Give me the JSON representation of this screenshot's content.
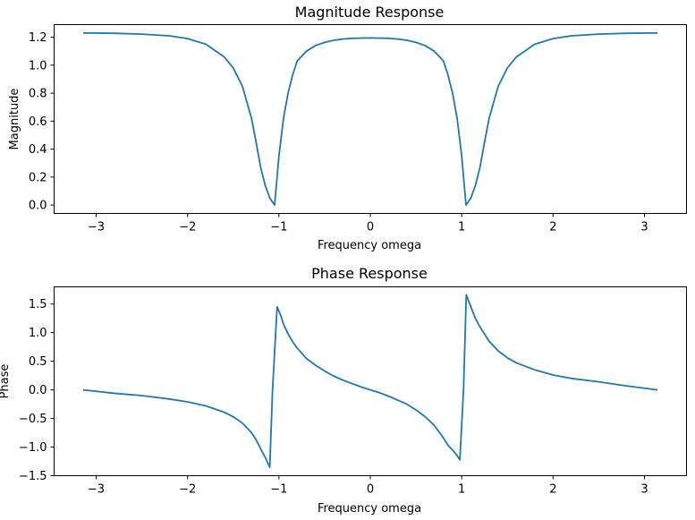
{
  "chart_data": [
    {
      "type": "line",
      "title": "Magnitude Response",
      "xlabel": "Frequency omega",
      "ylabel": "Magnitude",
      "xlim": [
        -3.46,
        3.46
      ],
      "ylim": [
        -0.06,
        1.29
      ],
      "xticks": [
        -3,
        -2,
        -1,
        0,
        1,
        2,
        3
      ],
      "yticks": [
        0.0,
        0.2,
        0.4,
        0.6,
        0.8,
        1.0,
        1.2
      ],
      "xtick_labels": [
        "−3",
        "−2",
        "−1",
        "0",
        "1",
        "2",
        "3"
      ],
      "ytick_labels": [
        "0.0",
        "0.2",
        "0.4",
        "0.6",
        "0.8",
        "1.0",
        "1.2"
      ],
      "grid": false,
      "color": "#1f77b4",
      "series": [
        {
          "x": [
            -3.1416,
            -2.8,
            -2.5,
            -2.2,
            -2.0,
            -1.8,
            -1.6,
            -1.5,
            -1.4,
            -1.3,
            -1.25,
            -1.2,
            -1.15,
            -1.1,
            -1.0472,
            -1.0,
            -0.95,
            -0.9,
            -0.85,
            -0.8,
            -0.7,
            -0.6,
            -0.5,
            -0.4,
            -0.3,
            -0.2,
            0.0,
            0.2,
            0.3,
            0.4,
            0.5,
            0.6,
            0.7,
            0.8,
            0.85,
            0.9,
            0.95,
            1.0,
            1.0472,
            1.1,
            1.15,
            1.2,
            1.25,
            1.3,
            1.4,
            1.5,
            1.6,
            1.8,
            2.0,
            2.2,
            2.5,
            2.8,
            3.1416
          ],
          "y": [
            1.23,
            1.228,
            1.222,
            1.21,
            1.19,
            1.15,
            1.06,
            0.98,
            0.85,
            0.62,
            0.45,
            0.27,
            0.14,
            0.05,
            0.0,
            0.35,
            0.62,
            0.8,
            0.93,
            1.03,
            1.1,
            1.14,
            1.163,
            1.178,
            1.187,
            1.192,
            1.195,
            1.192,
            1.187,
            1.178,
            1.163,
            1.14,
            1.1,
            1.03,
            0.93,
            0.8,
            0.62,
            0.35,
            0.0,
            0.05,
            0.14,
            0.27,
            0.45,
            0.62,
            0.85,
            0.98,
            1.06,
            1.15,
            1.19,
            1.21,
            1.222,
            1.228,
            1.23
          ]
        }
      ]
    },
    {
      "type": "line",
      "title": "Phase Response",
      "xlabel": "Frequency omega",
      "ylabel": "Phase",
      "xlim": [
        -3.46,
        3.46
      ],
      "ylim": [
        -1.5,
        1.8
      ],
      "xticks": [
        -3,
        -2,
        -1,
        0,
        1,
        2,
        3
      ],
      "yticks": [
        -1.5,
        -1.0,
        -0.5,
        0.0,
        0.5,
        1.0,
        1.5
      ],
      "xtick_labels": [
        "−3",
        "−2",
        "−1",
        "0",
        "1",
        "2",
        "3"
      ],
      "ytick_labels": [
        "−1.5",
        "−1.0",
        "−0.5",
        "0.0",
        "0.5",
        "1.0",
        "1.5"
      ],
      "grid": false,
      "color": "#1f77b4",
      "series": [
        {
          "x": [
            -3.1416,
            -2.8,
            -2.5,
            -2.2,
            -2.0,
            -1.8,
            -1.6,
            -1.5,
            -1.4,
            -1.3,
            -1.25,
            -1.2,
            -1.15,
            -1.1,
            -1.07,
            -1.02,
            -0.98,
            -0.95,
            -0.9,
            -0.85,
            -0.8,
            -0.7,
            -0.6,
            -0.5,
            -0.4,
            -0.3,
            -0.2,
            -0.1,
            0.0,
            0.1,
            0.2,
            0.3,
            0.4,
            0.5,
            0.6,
            0.7,
            0.8,
            0.85,
            0.9,
            0.95,
            0.98,
            1.02,
            1.05,
            1.1,
            1.15,
            1.2,
            1.3,
            1.4,
            1.5,
            1.6,
            1.8,
            2.0,
            2.2,
            2.5,
            2.8,
            3.1416
          ],
          "y": [
            0.0,
            -0.06,
            -0.1,
            -0.16,
            -0.21,
            -0.28,
            -0.39,
            -0.47,
            -0.58,
            -0.75,
            -0.87,
            -1.03,
            -1.18,
            -1.35,
            0.0,
            1.45,
            1.3,
            1.15,
            0.98,
            0.84,
            0.73,
            0.55,
            0.43,
            0.33,
            0.24,
            0.17,
            0.11,
            0.05,
            0.0,
            -0.05,
            -0.11,
            -0.18,
            -0.25,
            -0.35,
            -0.47,
            -0.62,
            -0.84,
            -0.97,
            -1.05,
            -1.15,
            -1.22,
            0.0,
            1.66,
            1.45,
            1.25,
            1.1,
            0.85,
            0.68,
            0.56,
            0.47,
            0.35,
            0.26,
            0.2,
            0.14,
            0.07,
            0.0
          ]
        }
      ]
    }
  ]
}
